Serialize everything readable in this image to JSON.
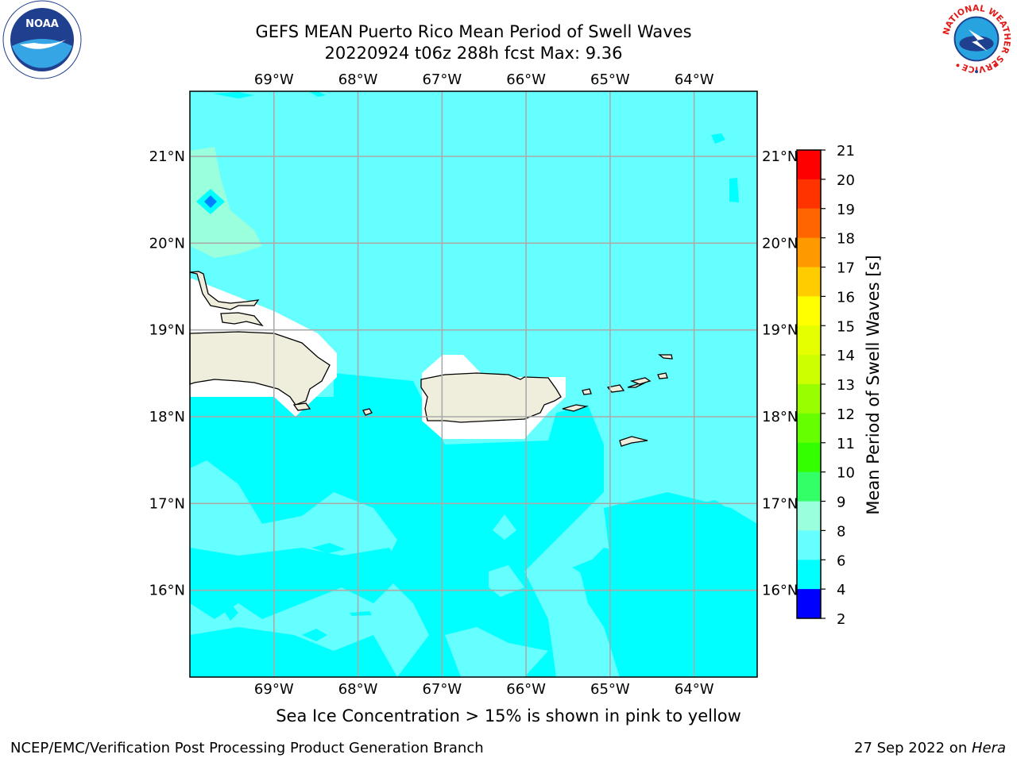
{
  "header": {
    "title_line1": "GEFS MEAN Puerto Rico Mean Period of Swell Waves",
    "title_line2": "20220924 t06z 288h fcst   Max: 9.36"
  },
  "logos": {
    "left": "NOAA",
    "right": "NATIONAL WEATHER SERVICE"
  },
  "map": {
    "lon_labels": [
      "69°W",
      "68°W",
      "67°W",
      "66°W",
      "65°W",
      "64°W"
    ],
    "lat_labels": [
      "21°N",
      "20°N",
      "19°N",
      "18°N",
      "17°N",
      "16°N"
    ],
    "lon_values": [
      -69,
      -68,
      -67,
      -66,
      -65,
      -64
    ],
    "lat_values": [
      21,
      20,
      19,
      18,
      17,
      16
    ],
    "extent": {
      "lon_min": -70,
      "lon_max": -63.25,
      "lat_min": 15,
      "lat_max": 21.75
    }
  },
  "colorbar": {
    "label": "Mean Period of Swell Waves [s]",
    "ticks": [
      "21",
      "20",
      "19",
      "18",
      "17",
      "16",
      "15",
      "14",
      "13",
      "12",
      "11",
      "10",
      "9",
      "8",
      "6",
      "4",
      "2"
    ],
    "colors_top_to_bottom": [
      "#ff0000",
      "#ff3300",
      "#ff6600",
      "#ff9900",
      "#ffcc00",
      "#ffff00",
      "#e6ff00",
      "#ccff00",
      "#99ff00",
      "#66ff00",
      "#33ff00",
      "#33ff66",
      "#99ffdd",
      "#66ffff",
      "#00ffff",
      "#0080ff",
      "#0000ff"
    ]
  },
  "caption": "Sea Ice Concentration > 15% is shown in pink to yellow",
  "footer": {
    "left": "NCEP/EMC/Verification Post Processing Product Generation Branch",
    "right_prefix": "27 Sep 2022 on ",
    "right_host": "Hera"
  },
  "colors": {
    "field_light": "#66ffff",
    "field_cyan": "#00ffff",
    "field_mint": "#99ffdd",
    "field_blue": "#0080ff",
    "land": "#efeedd",
    "grid": "#aaaaaa"
  }
}
